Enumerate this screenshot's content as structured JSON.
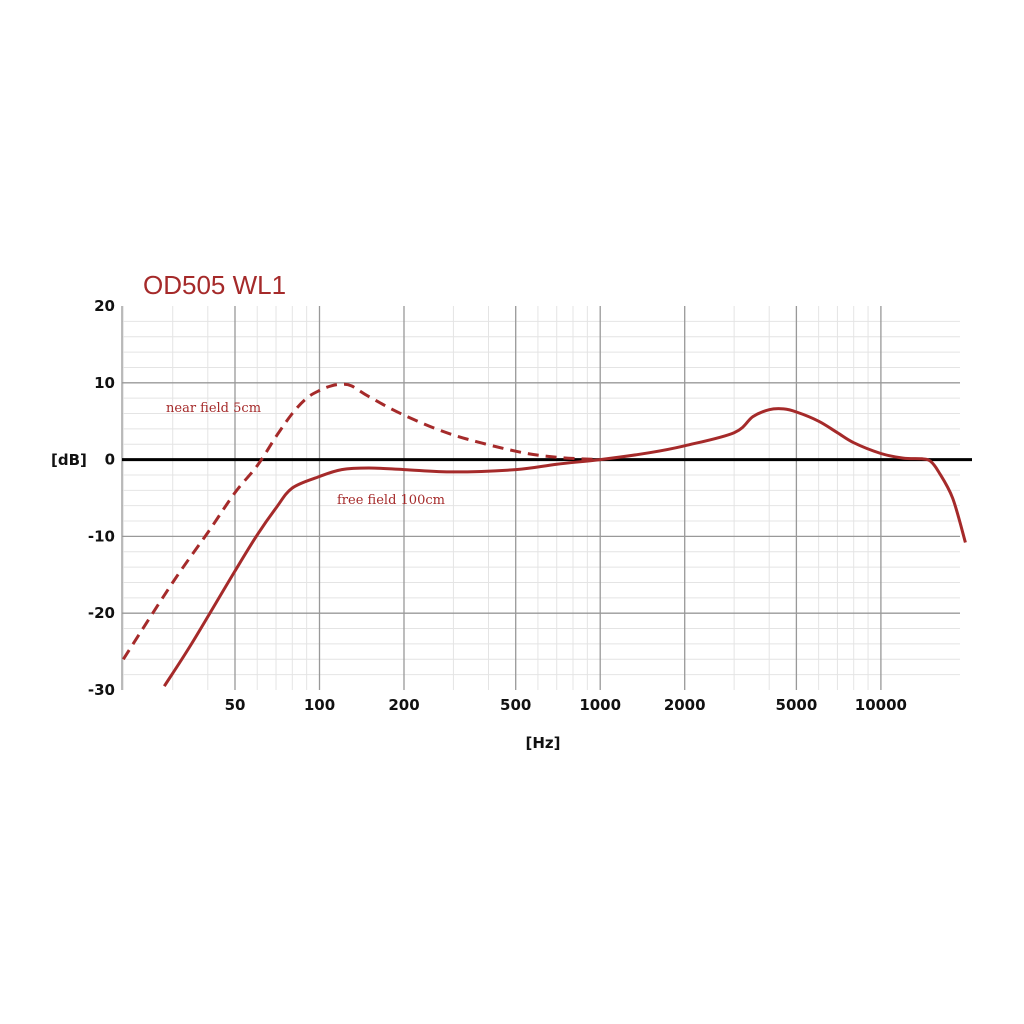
{
  "chart_data": {
    "type": "line",
    "title": "OD505 WL1",
    "xlabel": "[Hz]",
    "ylabel": "[dB]",
    "x_scale": "log",
    "xlim": [
      20,
      20000
    ],
    "ylim": [
      -30,
      20
    ],
    "x_ticks": [
      50,
      100,
      200,
      500,
      1000,
      2000,
      5000,
      10000
    ],
    "x_tick_labels": [
      "50",
      "100",
      "200",
      "500",
      "1000",
      "2000",
      "5000",
      "10000"
    ],
    "y_ticks": [
      20,
      10,
      0,
      -10,
      -20,
      -30
    ],
    "y_tick_labels": [
      "20",
      "10",
      "0",
      "-10",
      "-20",
      "-30"
    ],
    "grid": true,
    "colors": {
      "curve": "#a52a2a",
      "title": "#a52a2a",
      "grid_major": "#999999",
      "grid_minor": "#e4e4e4",
      "zero_line": "#000000"
    },
    "annotations": [
      {
        "text": "near field 5cm",
        "series": 0
      },
      {
        "text": "free field 100cm",
        "series": 1
      }
    ],
    "series": [
      {
        "style": "dashed",
        "x": [
          20,
          30,
          40,
          50,
          60,
          70,
          80,
          90,
          100,
          110,
          120,
          130,
          150,
          200,
          300,
          500,
          700,
          1000
        ],
        "y": [
          -26,
          -16,
          -9.5,
          -4.3,
          -0.8,
          3,
          6,
          8,
          9,
          9.6,
          9.8,
          9.6,
          8.2,
          5.8,
          3.2,
          1.1,
          0.3,
          0
        ]
      },
      {
        "style": "solid",
        "x": [
          28,
          35,
          50,
          60,
          70,
          80,
          100,
          120,
          150,
          200,
          300,
          500,
          700,
          1000,
          1500,
          2000,
          3000,
          3500,
          4000,
          4500,
          5000,
          6000,
          7000,
          8000,
          10000,
          12000,
          14000,
          15000,
          16000,
          18000,
          20000
        ],
        "y": [
          -29.5,
          -24,
          -14.5,
          -9.8,
          -6.3,
          -3.7,
          -2.2,
          -1.3,
          -1.1,
          -1.3,
          -1.6,
          -1.3,
          -0.6,
          0,
          0.9,
          1.8,
          3.5,
          5.6,
          6.5,
          6.6,
          6.2,
          5,
          3.5,
          2.2,
          0.8,
          0.2,
          0.1,
          -0.2,
          -1.5,
          -5,
          -10.8
        ]
      }
    ]
  }
}
